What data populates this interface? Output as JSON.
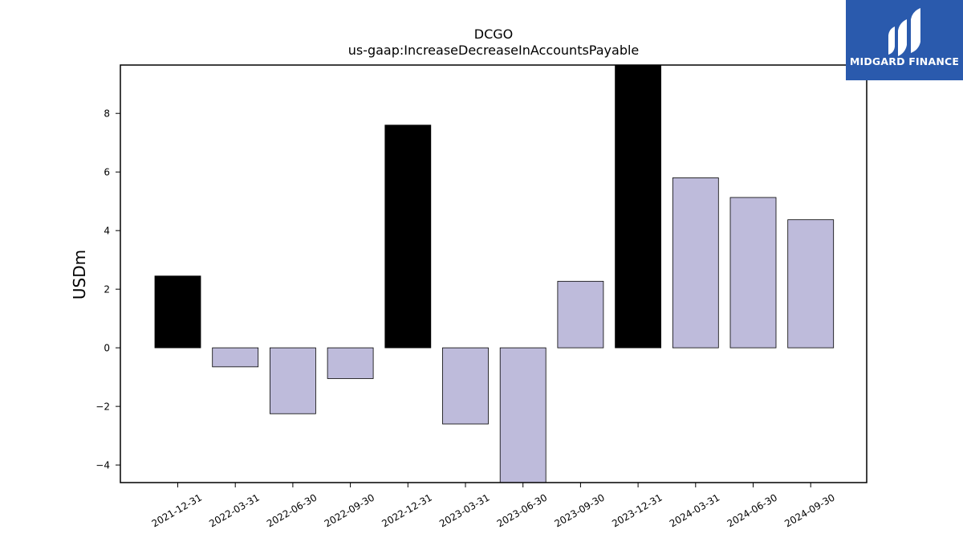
{
  "chart_data": {
    "type": "bar",
    "title": "DCGO",
    "subtitle": "us-gaap:IncreaseDecreaseInAccountsPayable",
    "xlabel": "",
    "ylabel": "USDm",
    "categories": [
      "2021-12-31",
      "2022-03-31",
      "2022-06-30",
      "2022-09-30",
      "2022-12-31",
      "2023-03-31",
      "2023-06-30",
      "2023-09-30",
      "2023-12-31",
      "2024-03-31",
      "2024-06-30",
      "2024-09-30"
    ],
    "values": [
      2.45,
      -0.65,
      -2.25,
      -1.05,
      7.6,
      -2.6,
      -4.6,
      2.27,
      9.65,
      5.8,
      5.13,
      4.37
    ],
    "highlight": [
      true,
      false,
      false,
      false,
      true,
      false,
      false,
      false,
      true,
      false,
      false,
      false
    ],
    "ylim": [
      -4.6,
      9.65
    ],
    "yticks": [
      -4,
      -2,
      0,
      2,
      4,
      6,
      8
    ],
    "ytick_labels": [
      "−4",
      "−2",
      "0",
      "2",
      "4",
      "6",
      "8"
    ],
    "grid": false,
    "colors": {
      "highlight": "#000000",
      "normal": "#bebbdb",
      "edge": "#000000"
    }
  },
  "logo": {
    "text": "MIDGARD FINANCE",
    "background": "#2a5aad"
  }
}
